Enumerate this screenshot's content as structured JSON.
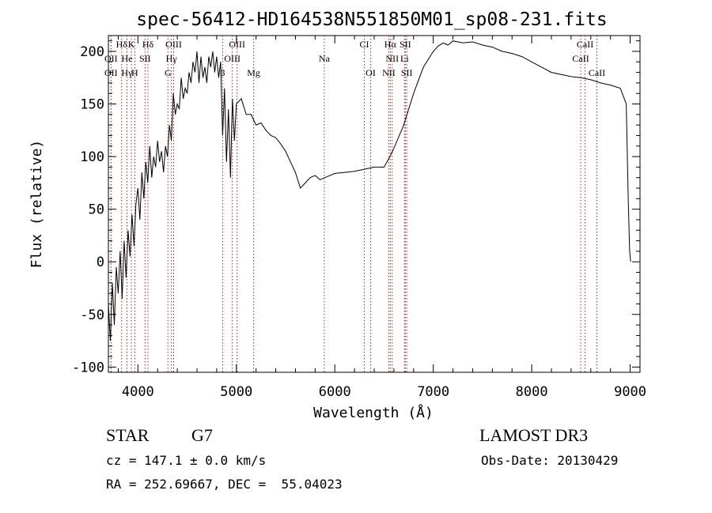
{
  "chart_data": {
    "type": "line",
    "title": "spec-56412-HD164538N551850M01_sp08-231.fits",
    "xlabel": "Wavelength (Å)",
    "ylabel": "Flux (relative)",
    "xlim": [
      3700,
      9100
    ],
    "ylim": [
      -105,
      215
    ],
    "xticks": [
      4000,
      5000,
      6000,
      7000,
      8000,
      9000
    ],
    "yticks": [
      -100,
      -50,
      0,
      50,
      100,
      150,
      200
    ],
    "grid": false,
    "line_color": "#000000",
    "marker_color": "#b22222",
    "series": [
      {
        "x": [
          3700,
          3720,
          3740,
          3760,
          3780,
          3800,
          3820,
          3840,
          3860,
          3880,
          3900,
          3920,
          3940,
          3960,
          3980,
          4000,
          4020,
          4040,
          4060,
          4080,
          4100,
          4120,
          4140,
          4160,
          4180,
          4200,
          4220,
          4240,
          4260,
          4280,
          4300,
          4320,
          4340,
          4360,
          4380,
          4400,
          4420,
          4440,
          4460,
          4480,
          4500,
          4520,
          4540,
          4560,
          4580,
          4600,
          4620,
          4640,
          4660,
          4680,
          4700,
          4720,
          4740,
          4760,
          4780,
          4800,
          4820,
          4840,
          4860,
          4880,
          4900,
          4920,
          4940,
          4960,
          4980,
          5000,
          5050,
          5100,
          5150,
          5200,
          5250,
          5300,
          5350,
          5400,
          5450,
          5500,
          5550,
          5600,
          5650,
          5700,
          5750,
          5800,
          5850,
          5900,
          5950,
          6000,
          6100,
          6200,
          6300,
          6400,
          6500,
          6560,
          6600,
          6700,
          6800,
          6900,
          7000,
          7050,
          7100,
          7150,
          7200,
          7300,
          7400,
          7500,
          7600,
          7700,
          7800,
          7900,
          8000,
          8100,
          8200,
          8300,
          8400,
          8500,
          8600,
          8700,
          8800,
          8900,
          8960,
          8980,
          8995,
          9005
        ],
        "y": [
          -40,
          -75,
          -20,
          -60,
          -5,
          -30,
          10,
          -35,
          20,
          -15,
          30,
          5,
          45,
          15,
          55,
          70,
          40,
          85,
          60,
          95,
          75,
          110,
          80,
          100,
          90,
          115,
          95,
          105,
          85,
          110,
          100,
          130,
          115,
          160,
          140,
          150,
          145,
          175,
          155,
          165,
          160,
          180,
          170,
          190,
          180,
          200,
          170,
          195,
          175,
          185,
          170,
          195,
          185,
          200,
          180,
          195,
          175,
          190,
          120,
          165,
          95,
          145,
          80,
          155,
          115,
          150,
          155,
          140,
          140,
          130,
          132,
          125,
          120,
          118,
          112,
          105,
          95,
          85,
          70,
          75,
          80,
          82,
          78,
          80,
          82,
          84,
          85,
          86,
          88,
          90,
          90,
          100,
          108,
          130,
          160,
          185,
          200,
          205,
          208,
          206,
          210,
          208,
          209,
          206,
          204,
          200,
          198,
          195,
          190,
          185,
          180,
          178,
          176,
          175,
          173,
          170,
          168,
          165,
          150,
          60,
          10,
          0
        ]
      }
    ],
    "line_markers": [
      {
        "label": "Hδ",
        "x": 3835,
        "row": 0
      },
      {
        "label": "K",
        "x": 3934,
        "row": 0
      },
      {
        "label": "Hδ",
        "x": 4102,
        "row": 0
      },
      {
        "label": "OIII",
        "x": 4363,
        "row": 0
      },
      {
        "label": "OIII",
        "x": 5007,
        "row": 0
      },
      {
        "label": "CI",
        "x": 6300,
        "row": 0
      },
      {
        "label": "Hα",
        "x": 6563,
        "row": 0
      },
      {
        "label": "SII",
        "x": 6716,
        "row": 0
      },
      {
        "label": "CaII",
        "x": 8542,
        "row": 0
      },
      {
        "label": "OII",
        "x": 3727,
        "row": 1
      },
      {
        "label": "He",
        "x": 3889,
        "row": 1
      },
      {
        "label": "SII",
        "x": 4072,
        "row": 1
      },
      {
        "label": "Hγ",
        "x": 4340,
        "row": 1
      },
      {
        "label": "OIII",
        "x": 4959,
        "row": 1
      },
      {
        "label": "Na",
        "x": 5893,
        "row": 1
      },
      {
        "label": "NII",
        "x": 6583,
        "row": 1
      },
      {
        "label": "Li",
        "x": 6708,
        "row": 1
      },
      {
        "label": "CaII",
        "x": 8498,
        "row": 1
      },
      {
        "label": "OII",
        "x": 3727,
        "row": 2
      },
      {
        "label": "Hγ",
        "x": 3888,
        "row": 2
      },
      {
        "label": "H",
        "x": 3968,
        "row": 2
      },
      {
        "label": "G",
        "x": 4305,
        "row": 2
      },
      {
        "label": "β",
        "x": 4861,
        "row": 2
      },
      {
        "label": "Mg",
        "x": 5175,
        "row": 2
      },
      {
        "label": "OI",
        "x": 6364,
        "row": 2
      },
      {
        "label": "NII",
        "x": 6548,
        "row": 2
      },
      {
        "label": "SII",
        "x": 6731,
        "row": 2
      },
      {
        "label": "CaII",
        "x": 8662,
        "row": 2
      }
    ]
  },
  "info": {
    "object_class": "STAR",
    "subclass": "G7",
    "survey": "LAMOST DR3",
    "redshift": "cz = 147.1 ± 0.0 km/s",
    "obs_date": "Obs-Date: 20130429",
    "coords": "RA = 252.69667, DEC =  55.04023"
  }
}
